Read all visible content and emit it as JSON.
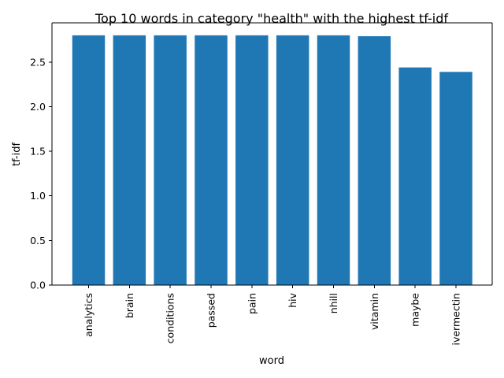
{
  "chart_data": {
    "type": "bar",
    "title": "Top 10 words in category \"health\" with the highest tf-idf",
    "xlabel": "word",
    "ylabel": "tf-idf",
    "categories": [
      "analytics",
      "brain",
      "conditions",
      "passed",
      "pain",
      "hiv",
      "nhill",
      "vitamin",
      "maybe",
      "ivermectin"
    ],
    "values": [
      2.8,
      2.8,
      2.8,
      2.8,
      2.8,
      2.8,
      2.8,
      2.79,
      2.44,
      2.39
    ],
    "ylim": [
      0,
      2.94
    ],
    "yticks": [
      0.0,
      0.5,
      1.0,
      1.5,
      2.0,
      2.5
    ],
    "ytick_labels": [
      "0.0",
      "0.5",
      "1.0",
      "1.5",
      "2.0",
      "2.5"
    ],
    "grid": false,
    "bar_color": "#1f77b4"
  }
}
